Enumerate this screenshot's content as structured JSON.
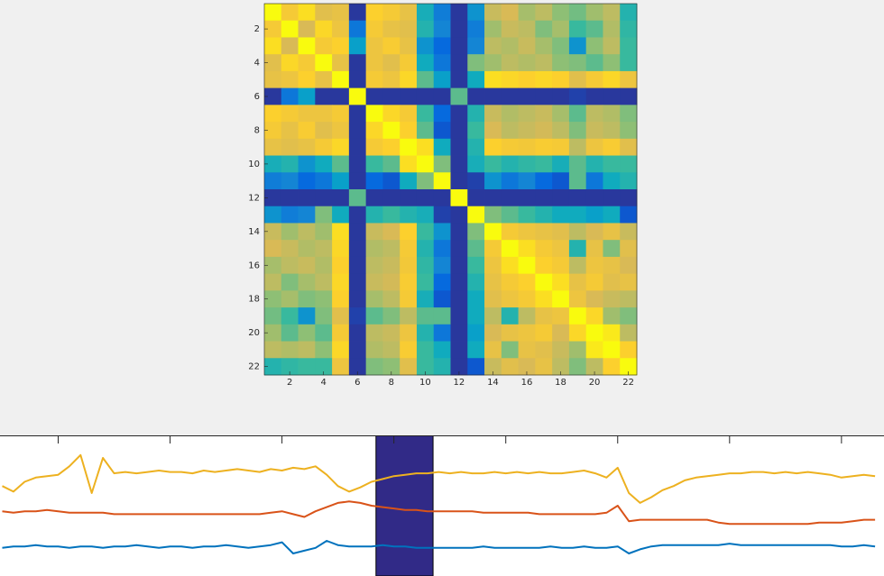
{
  "chart_data": [
    {
      "type": "heatmap",
      "xlim": [
        0.5,
        22.5
      ],
      "ylim": [
        0.5,
        22.5
      ],
      "xticks": [
        2,
        4,
        6,
        8,
        10,
        12,
        14,
        16,
        18,
        20,
        22
      ],
      "yticks": [
        2,
        4,
        6,
        8,
        10,
        12,
        14,
        16,
        18,
        20,
        22
      ],
      "clim": [
        0,
        1
      ],
      "colormap": [
        "#352a87",
        "#0363e1",
        "#1485d4",
        "#06a7c6",
        "#38b99e",
        "#92bf73",
        "#d9ba56",
        "#fcce2e",
        "#f9fb0e"
      ],
      "values": [
        [
          1,
          0.85,
          0.92,
          0.78,
          0.8,
          0.03,
          0.88,
          0.85,
          0.8,
          0.42,
          0.22,
          0.03,
          0.3,
          0.72,
          0.75,
          0.66,
          0.7,
          0.62,
          0.58,
          0.65,
          0.7,
          0.45
        ],
        [
          0.85,
          1,
          0.75,
          0.9,
          0.82,
          0.2,
          0.85,
          0.8,
          0.78,
          0.45,
          0.25,
          0.03,
          0.22,
          0.65,
          0.72,
          0.7,
          0.6,
          0.66,
          0.5,
          0.55,
          0.68,
          0.48
        ],
        [
          0.92,
          0.75,
          1,
          0.85,
          0.88,
          0.35,
          0.82,
          0.86,
          0.8,
          0.3,
          0.15,
          0.03,
          0.25,
          0.7,
          0.68,
          0.72,
          0.66,
          0.6,
          0.3,
          0.62,
          0.7,
          0.5
        ],
        [
          0.78,
          0.9,
          0.85,
          1,
          0.8,
          0.03,
          0.82,
          0.78,
          0.85,
          0.4,
          0.2,
          0.03,
          0.6,
          0.65,
          0.7,
          0.68,
          0.7,
          0.62,
          0.6,
          0.55,
          0.62,
          0.5
        ],
        [
          0.8,
          0.82,
          0.88,
          0.8,
          1,
          0.03,
          0.85,
          0.82,
          0.9,
          0.55,
          0.35,
          0.03,
          0.4,
          0.92,
          0.9,
          0.88,
          0.9,
          0.88,
          0.78,
          0.85,
          0.9,
          0.82
        ],
        [
          0.03,
          0.2,
          0.35,
          0.03,
          0.03,
          1,
          0.03,
          0.03,
          0.03,
          0.03,
          0.03,
          0.55,
          0.03,
          0.03,
          0.03,
          0.03,
          0.03,
          0.03,
          0.05,
          0.03,
          0.03,
          0.03
        ],
        [
          0.88,
          0.85,
          0.82,
          0.82,
          0.85,
          0.03,
          1,
          0.9,
          0.85,
          0.5,
          0.15,
          0.03,
          0.45,
          0.72,
          0.68,
          0.7,
          0.72,
          0.66,
          0.55,
          0.7,
          0.68,
          0.6
        ],
        [
          0.85,
          0.8,
          0.86,
          0.78,
          0.82,
          0.03,
          0.9,
          1,
          0.88,
          0.55,
          0.1,
          0.03,
          0.5,
          0.75,
          0.7,
          0.72,
          0.74,
          0.7,
          0.6,
          0.72,
          0.7,
          0.62
        ],
        [
          0.8,
          0.78,
          0.8,
          0.85,
          0.9,
          0.03,
          0.85,
          0.88,
          1,
          0.92,
          0.4,
          0.03,
          0.45,
          0.88,
          0.85,
          0.84,
          0.86,
          0.85,
          0.7,
          0.82,
          0.86,
          0.78
        ],
        [
          0.42,
          0.45,
          0.3,
          0.4,
          0.55,
          0.03,
          0.5,
          0.55,
          0.92,
          1,
          0.6,
          0.03,
          0.42,
          0.5,
          0.45,
          0.48,
          0.5,
          0.42,
          0.55,
          0.45,
          0.5,
          0.5
        ],
        [
          0.22,
          0.25,
          0.15,
          0.2,
          0.35,
          0.03,
          0.15,
          0.1,
          0.4,
          0.6,
          1,
          0.03,
          0.05,
          0.3,
          0.2,
          0.25,
          0.15,
          0.1,
          0.55,
          0.2,
          0.4,
          0.45
        ],
        [
          0.03,
          0.03,
          0.03,
          0.03,
          0.03,
          0.55,
          0.03,
          0.03,
          0.03,
          0.03,
          0.03,
          1,
          0.03,
          0.03,
          0.03,
          0.03,
          0.03,
          0.03,
          0.03,
          0.03,
          0.03,
          0.03
        ],
        [
          0.3,
          0.22,
          0.25,
          0.6,
          0.4,
          0.03,
          0.45,
          0.5,
          0.45,
          0.42,
          0.05,
          0.03,
          1,
          0.6,
          0.55,
          0.5,
          0.45,
          0.4,
          0.4,
          0.35,
          0.4,
          0.1
        ],
        [
          0.72,
          0.65,
          0.7,
          0.65,
          0.92,
          0.03,
          0.72,
          0.75,
          0.88,
          0.5,
          0.3,
          0.03,
          0.6,
          1,
          0.85,
          0.82,
          0.8,
          0.78,
          0.7,
          0.75,
          0.8,
          0.72
        ],
        [
          0.75,
          0.72,
          0.68,
          0.7,
          0.9,
          0.03,
          0.68,
          0.7,
          0.85,
          0.45,
          0.2,
          0.03,
          0.55,
          0.85,
          1,
          0.92,
          0.85,
          0.82,
          0.45,
          0.8,
          0.6,
          0.78
        ],
        [
          0.66,
          0.7,
          0.72,
          0.68,
          0.88,
          0.03,
          0.7,
          0.72,
          0.84,
          0.48,
          0.25,
          0.03,
          0.5,
          0.82,
          0.92,
          1,
          0.88,
          0.85,
          0.7,
          0.82,
          0.8,
          0.75
        ],
        [
          0.7,
          0.6,
          0.66,
          0.7,
          0.9,
          0.03,
          0.72,
          0.74,
          0.86,
          0.5,
          0.15,
          0.03,
          0.45,
          0.8,
          0.85,
          0.88,
          1,
          0.92,
          0.8,
          0.85,
          0.78,
          0.8
        ],
        [
          0.62,
          0.66,
          0.6,
          0.62,
          0.88,
          0.03,
          0.66,
          0.7,
          0.85,
          0.42,
          0.1,
          0.03,
          0.4,
          0.78,
          0.82,
          0.85,
          0.92,
          1,
          0.82,
          0.75,
          0.72,
          0.7
        ],
        [
          0.58,
          0.5,
          0.3,
          0.6,
          0.78,
          0.05,
          0.55,
          0.6,
          0.7,
          0.55,
          0.55,
          0.03,
          0.4,
          0.7,
          0.45,
          0.7,
          0.8,
          0.82,
          1,
          0.9,
          0.65,
          0.6
        ],
        [
          0.65,
          0.55,
          0.62,
          0.55,
          0.85,
          0.03,
          0.7,
          0.72,
          0.82,
          0.45,
          0.2,
          0.03,
          0.35,
          0.75,
          0.8,
          0.82,
          0.85,
          0.75,
          0.9,
          1,
          0.95,
          0.7
        ],
        [
          0.7,
          0.68,
          0.7,
          0.62,
          0.9,
          0.03,
          0.68,
          0.7,
          0.86,
          0.5,
          0.4,
          0.03,
          0.4,
          0.8,
          0.6,
          0.8,
          0.78,
          0.72,
          0.65,
          0.95,
          1,
          0.88
        ],
        [
          0.45,
          0.48,
          0.5,
          0.5,
          0.82,
          0.03,
          0.6,
          0.62,
          0.78,
          0.5,
          0.45,
          0.03,
          0.1,
          0.72,
          0.78,
          0.75,
          0.8,
          0.7,
          0.6,
          0.7,
          0.88,
          1
        ]
      ]
    },
    {
      "type": "line",
      "xlim": [
        48,
        838
      ],
      "ylim": [
        0,
        10
      ],
      "xticks": [
        100,
        200,
        300,
        400,
        500,
        600,
        700,
        800
      ],
      "highlight": {
        "x": [
          384,
          435
        ],
        "color": "#312a87"
      },
      "x": [
        50,
        60,
        70,
        80,
        90,
        100,
        110,
        120,
        130,
        140,
        150,
        160,
        170,
        180,
        190,
        200,
        210,
        220,
        230,
        240,
        250,
        260,
        270,
        280,
        290,
        300,
        310,
        320,
        330,
        340,
        350,
        360,
        370,
        380,
        390,
        400,
        410,
        420,
        430,
        440,
        450,
        460,
        470,
        480,
        490,
        500,
        510,
        520,
        530,
        540,
        550,
        560,
        570,
        580,
        590,
        600,
        610,
        620,
        630,
        640,
        650,
        660,
        670,
        680,
        690,
        700,
        710,
        720,
        730,
        740,
        750,
        760,
        770,
        780,
        790,
        800,
        810,
        820,
        830
      ],
      "series": [
        {
          "color": "#edb120",
          "values": [
            6.4,
            6.0,
            6.7,
            7.0,
            7.1,
            7.2,
            7.8,
            8.6,
            5.9,
            8.4,
            7.3,
            7.4,
            7.3,
            7.4,
            7.5,
            7.4,
            7.4,
            7.3,
            7.5,
            7.4,
            7.5,
            7.6,
            7.5,
            7.4,
            7.6,
            7.5,
            7.7,
            7.6,
            7.8,
            7.2,
            6.4,
            6.0,
            6.3,
            6.7,
            6.9,
            7.1,
            7.2,
            7.3,
            7.3,
            7.4,
            7.3,
            7.4,
            7.3,
            7.3,
            7.4,
            7.3,
            7.4,
            7.3,
            7.4,
            7.3,
            7.3,
            7.4,
            7.5,
            7.3,
            7.0,
            7.7,
            5.9,
            5.2,
            5.6,
            6.1,
            6.4,
            6.8,
            7.0,
            7.1,
            7.2,
            7.3,
            7.3,
            7.4,
            7.4,
            7.3,
            7.4,
            7.3,
            7.4,
            7.3,
            7.2,
            7.0,
            7.1,
            7.2,
            7.1
          ]
        },
        {
          "color": "#d95319",
          "values": [
            4.6,
            4.5,
            4.6,
            4.6,
            4.7,
            4.6,
            4.5,
            4.5,
            4.5,
            4.5,
            4.4,
            4.4,
            4.4,
            4.4,
            4.4,
            4.4,
            4.4,
            4.4,
            4.4,
            4.4,
            4.4,
            4.4,
            4.4,
            4.4,
            4.5,
            4.6,
            4.4,
            4.2,
            4.6,
            4.9,
            5.2,
            5.3,
            5.2,
            5.0,
            4.9,
            4.8,
            4.7,
            4.7,
            4.6,
            4.6,
            4.6,
            4.6,
            4.6,
            4.5,
            4.5,
            4.5,
            4.5,
            4.5,
            4.4,
            4.4,
            4.4,
            4.4,
            4.4,
            4.4,
            4.5,
            5.0,
            3.9,
            4.0,
            4.0,
            4.0,
            4.0,
            4.0,
            4.0,
            4.0,
            3.8,
            3.7,
            3.7,
            3.7,
            3.7,
            3.7,
            3.7,
            3.7,
            3.7,
            3.8,
            3.8,
            3.8,
            3.9,
            4.0,
            4.0
          ]
        },
        {
          "color": "#0072bd",
          "values": [
            2.0,
            2.1,
            2.1,
            2.2,
            2.1,
            2.1,
            2.0,
            2.1,
            2.1,
            2.0,
            2.1,
            2.1,
            2.2,
            2.1,
            2.0,
            2.1,
            2.1,
            2.0,
            2.1,
            2.1,
            2.2,
            2.1,
            2.0,
            2.1,
            2.2,
            2.4,
            1.6,
            1.8,
            2.0,
            2.5,
            2.2,
            2.1,
            2.1,
            2.1,
            2.2,
            2.1,
            2.1,
            2.0,
            2.0,
            2.0,
            2.0,
            2.0,
            2.0,
            2.1,
            2.0,
            2.0,
            2.0,
            2.0,
            2.0,
            2.1,
            2.0,
            2.0,
            2.1,
            2.0,
            2.0,
            2.1,
            1.6,
            1.9,
            2.1,
            2.2,
            2.2,
            2.2,
            2.2,
            2.2,
            2.2,
            2.3,
            2.2,
            2.2,
            2.2,
            2.2,
            2.2,
            2.2,
            2.2,
            2.2,
            2.2,
            2.1,
            2.1,
            2.2,
            2.1
          ]
        }
      ]
    }
  ]
}
